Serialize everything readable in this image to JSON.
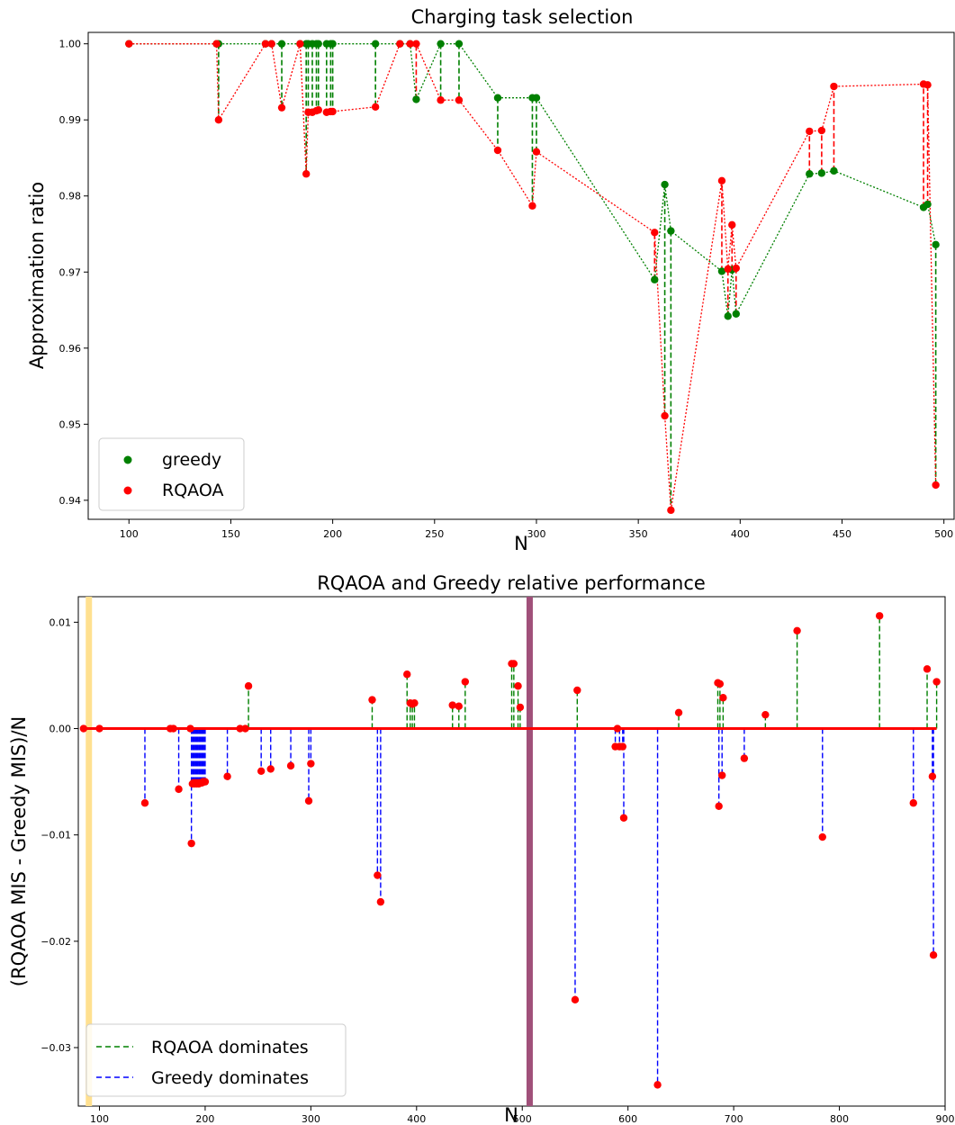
{
  "chart_data": [
    {
      "type": "scatter",
      "title": "Charging task selection",
      "xlabel": "N",
      "ylabel": "Approximation ratio",
      "xlim": [
        80,
        505
      ],
      "ylim": [
        0.9375,
        1.0015
      ],
      "xticks": [
        100,
        150,
        200,
        250,
        300,
        350,
        400,
        450,
        500
      ],
      "yticks": [
        0.94,
        0.95,
        0.96,
        0.97,
        0.98,
        0.99,
        1.0
      ],
      "ytick_labels": [
        "0.94",
        "0.95",
        "0.96",
        "0.97",
        "0.98",
        "0.99",
        "1.00"
      ],
      "legend_position": "lower-left",
      "colors": {
        "greedy": "#008000",
        "RQAOA": "#ff0000"
      },
      "x": [
        100,
        143,
        144,
        167,
        170,
        175,
        184,
        187,
        188,
        190,
        192,
        193,
        197,
        199,
        200,
        221,
        233,
        238,
        241,
        253,
        262,
        281,
        298,
        300,
        358,
        363,
        366,
        391,
        394,
        396,
        398,
        434,
        440,
        446,
        490,
        492,
        496
      ],
      "series": [
        {
          "name": "greedy",
          "values": [
            1.0,
            1.0,
            1.0,
            1.0,
            1.0,
            1.0,
            1.0,
            1.0,
            1.0,
            1.0,
            1.0,
            1.0,
            1.0,
            1.0,
            1.0,
            1.0,
            1.0,
            1.0,
            0.9927,
            1.0,
            1.0,
            0.9929,
            0.9929,
            0.9929,
            0.969,
            0.9815,
            0.9754,
            0.9701,
            0.9642,
            0.9703,
            0.9645,
            0.9829,
            0.983,
            0.9833,
            0.9785,
            0.9789,
            0.9736
          ]
        },
        {
          "name": "RQAOA",
          "values": [
            1.0,
            1.0,
            0.99,
            1.0,
            1.0,
            0.9916,
            1.0,
            0.9829,
            0.991,
            0.991,
            0.9912,
            0.9913,
            0.991,
            0.9911,
            0.9911,
            0.9917,
            1.0,
            1.0,
            1.0,
            0.9926,
            0.9926,
            0.986,
            0.9787,
            0.9858,
            0.9752,
            0.9511,
            0.9387,
            0.982,
            0.9704,
            0.9762,
            0.9705,
            0.9885,
            0.9886,
            0.9944,
            0.9947,
            0.9946,
            0.942
          ]
        }
      ]
    },
    {
      "type": "scatter",
      "title": "RQAOA and Greedy relative performance",
      "xlabel": "N",
      "ylabel": "(RQAOA MIS - Greedy MIS)/N",
      "xlim": [
        80,
        900
      ],
      "ylim": [
        -0.0355,
        0.0124
      ],
      "xticks": [
        100,
        200,
        300,
        400,
        500,
        600,
        700,
        800,
        900
      ],
      "yticks": [
        -0.03,
        -0.02,
        -0.01,
        0.0,
        0.01
      ],
      "ytick_labels": [
        "−0.03",
        "−0.02",
        "−0.01",
        "0.00",
        "0.01"
      ],
      "legend_position": "lower-left",
      "legend": [
        "RQAOA dominates",
        "Greedy dominates"
      ],
      "colors": {
        "rqaoa_dominates": "#008000",
        "greedy_dominates": "#0000ff",
        "points": "#ff0000",
        "zero_line": "#ff0000",
        "left_band": "#ffe090",
        "right_band": "#a0507a"
      },
      "vertical_bands": [
        90,
        507
      ],
      "x": [
        85,
        100,
        143,
        167,
        170,
        175,
        186,
        187,
        188,
        189,
        190,
        191,
        192,
        193,
        194,
        195,
        196,
        197,
        198,
        199,
        200,
        221,
        233,
        238,
        241,
        253,
        262,
        281,
        298,
        300,
        358,
        363,
        366,
        391,
        394,
        396,
        398,
        434,
        440,
        446,
        490,
        492,
        496,
        498,
        550,
        552,
        588,
        590,
        592,
        595,
        596,
        628,
        648,
        685,
        686,
        687,
        689,
        690,
        710,
        730,
        760,
        784,
        838,
        870,
        883,
        888,
        889,
        892
      ],
      "values": [
        0.0,
        0.0,
        -0.007,
        0.0,
        0.0,
        -0.0057,
        0.0,
        -0.0108,
        -0.0052,
        -0.0051,
        -0.0052,
        -0.0051,
        -0.0052,
        -0.0051,
        -0.0052,
        -0.0051,
        -0.0051,
        -0.0051,
        -0.005,
        -0.005,
        -0.005,
        -0.0045,
        0.0,
        0.0,
        0.004,
        -0.004,
        -0.0038,
        -0.0035,
        -0.0068,
        -0.0033,
        0.0027,
        -0.0138,
        -0.0163,
        0.0051,
        0.0024,
        0.0023,
        0.0024,
        0.0022,
        0.0021,
        0.0044,
        0.0061,
        0.0061,
        0.004,
        0.002,
        -0.0255,
        0.0036,
        -0.0017,
        0.0,
        -0.0017,
        -0.0017,
        -0.0084,
        -0.0335,
        0.0015,
        0.0043,
        -0.0073,
        0.0042,
        -0.0044,
        0.0029,
        -0.0028,
        0.0013,
        0.0092,
        -0.0102,
        0.0106,
        -0.007,
        0.0056,
        -0.0045,
        -0.0213,
        0.0044
      ]
    }
  ]
}
